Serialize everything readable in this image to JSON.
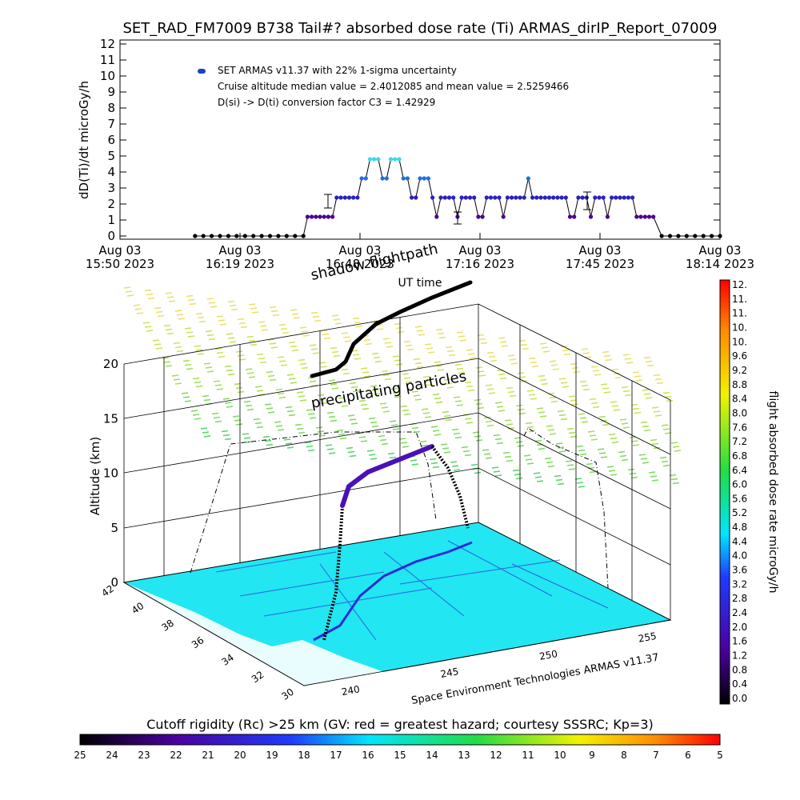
{
  "title": "SET_RAD_FM7009   B738 Tail#? absorbed dose rate (Ti) ARMAS_dirIP_Report_07009",
  "colors": {
    "flight_line": "#000000",
    "map_fill": "#22e6f2",
    "map_features": "#2b2bd6",
    "legend_marker": "#1f3fd0"
  },
  "chart_data": [
    {
      "type": "scatter",
      "title": "SET_RAD_FM7009   B738 Tail#? absorbed dose rate (Ti) ARMAS_dirIP_Report_07009",
      "ylabel": "dD(Ti)/dt microGy/h",
      "xlabel": "UT time",
      "ylim": [
        0,
        12
      ],
      "yticks": [
        "0",
        "1",
        "2",
        "3",
        "4",
        "5",
        "6",
        "7",
        "8",
        "9",
        "10",
        "11",
        "12"
      ],
      "xticks": [
        {
          "date": "Aug 03",
          "time": "15:50 2023"
        },
        {
          "date": "Aug 03",
          "time": "16:19 2023"
        },
        {
          "date": "Aug 03",
          "time": "16:48 2023"
        },
        {
          "date": "Aug 03",
          "time": "17:16 2023"
        },
        {
          "date": "Aug 03",
          "time": "17:45 2023"
        },
        {
          "date": "Aug 03",
          "time": "18:14 2023"
        }
      ],
      "legend": [
        "SET ARMAS v11.37 with 22% 1-sigma uncertainty",
        "Cruise altitude median value = 2.4012085 and mean value = 2.5259466",
        "D(si) -> D(ti) conversion factor C3 = 1.42929"
      ],
      "series": [
        {
          "x": [
            "16:08",
            "16:10",
            "16:12",
            "16:14",
            "16:16",
            "16:18",
            "16:20",
            "16:22",
            "16:24",
            "16:26",
            "16:28",
            "16:30",
            "16:32",
            "16:34",
            "16:35",
            "16:36",
            "16:37",
            "16:38",
            "16:39",
            "16:40",
            "16:41",
            "16:42",
            "16:43",
            "16:44",
            "16:45",
            "16:46",
            "16:47",
            "16:48",
            "16:49",
            "16:50",
            "16:51",
            "16:52",
            "16:53",
            "16:54",
            "16:55",
            "16:56",
            "16:57",
            "16:58",
            "16:59",
            "17:00",
            "17:01",
            "17:02",
            "17:03",
            "17:04",
            "17:05",
            "17:06",
            "17:07",
            "17:08",
            "17:09",
            "17:10",
            "17:11",
            "17:12",
            "17:13",
            "17:14",
            "17:15",
            "17:16",
            "17:17",
            "17:18",
            "17:19",
            "17:20",
            "17:21",
            "17:22",
            "17:23",
            "17:24",
            "17:25",
            "17:26",
            "17:27",
            "17:28",
            "17:29",
            "17:30",
            "17:31",
            "17:32",
            "17:33",
            "17:34",
            "17:35",
            "17:36",
            "17:37",
            "17:38",
            "17:39",
            "17:40",
            "17:41",
            "17:42",
            "17:43",
            "17:44",
            "17:45",
            "17:46",
            "17:47",
            "17:48",
            "17:49",
            "17:50",
            "17:51",
            "17:52",
            "17:53",
            "17:54",
            "17:55",
            "17:56",
            "17:57",
            "17:58",
            "18:00",
            "18:02",
            "18:04",
            "18:06",
            "18:08",
            "18:10",
            "18:12",
            "18:14"
          ],
          "values": [
            0,
            0,
            0,
            0,
            0,
            0,
            0,
            0,
            0,
            0,
            0,
            0,
            0,
            0,
            1.2,
            1.2,
            1.2,
            1.2,
            1.2,
            1.2,
            1.2,
            2.4,
            2.4,
            2.4,
            2.4,
            2.4,
            2.4,
            3.6,
            3.6,
            4.8,
            4.8,
            4.8,
            3.6,
            3.6,
            4.8,
            4.8,
            4.8,
            3.6,
            3.6,
            2.4,
            2.4,
            3.6,
            3.6,
            3.6,
            2.4,
            1.2,
            2.4,
            2.4,
            2.4,
            2.4,
            1.2,
            2.4,
            2.4,
            2.4,
            2.4,
            1.2,
            1.2,
            2.4,
            2.4,
            2.4,
            2.4,
            1.2,
            2.4,
            2.4,
            2.4,
            2.4,
            2.4,
            3.6,
            2.4,
            2.4,
            2.4,
            2.4,
            2.4,
            2.4,
            2.4,
            2.4,
            2.4,
            1.2,
            1.2,
            2.4,
            2.4,
            2.4,
            1.2,
            2.4,
            2.4,
            2.4,
            1.2,
            2.4,
            2.4,
            2.4,
            2.4,
            2.4,
            2.4,
            1.2,
            1.2,
            1.2,
            1.2,
            1.2,
            0,
            0,
            0,
            0,
            0,
            0,
            0,
            0
          ]
        }
      ]
    },
    {
      "type": "scatter",
      "title": "",
      "zlabel": "Altitude (km)",
      "zlim": [
        0,
        20
      ],
      "zticks": [
        "0",
        "5",
        "10",
        "15",
        "20"
      ],
      "latitude_ticks": [
        "42",
        "40",
        "38",
        "36",
        "34",
        "32",
        "30"
      ],
      "longitude_ticks": [
        "240",
        "245",
        "250",
        "255"
      ],
      "annotations": [
        "shadow flightpath",
        "precipitating particles",
        "Space Environment Technologies ARMAS v11.37"
      ],
      "cutoff_title": "Cutoff rigidity (Rc) >25 km (GV: red = greatest hazard; courtesy SSSRC; Kp=3)",
      "cutoff_ticks": [
        "25",
        "24",
        "23",
        "22",
        "21",
        "20",
        "19",
        "18",
        "17",
        "16",
        "15",
        "14",
        "13",
        "12",
        "11",
        "10",
        "9",
        "8",
        "7",
        "6",
        "5"
      ],
      "colorbar_label": "flight absorbed dose rate microGy/h",
      "colorbar_ticks": [
        "12.",
        "11.",
        "11.",
        "10.",
        "10.",
        "9.6",
        "9.2",
        "8.8",
        "8.4",
        "8.0",
        "7.6",
        "7.2",
        "6.8",
        "6.4",
        "6.0",
        "5.6",
        "5.2",
        "4.8",
        "4.4",
        "4.0",
        "3.6",
        "3.2",
        "2.8",
        "2.4",
        "2.0",
        "1.6",
        "1.2",
        "0.8",
        "0.4",
        "0.0"
      ]
    }
  ]
}
